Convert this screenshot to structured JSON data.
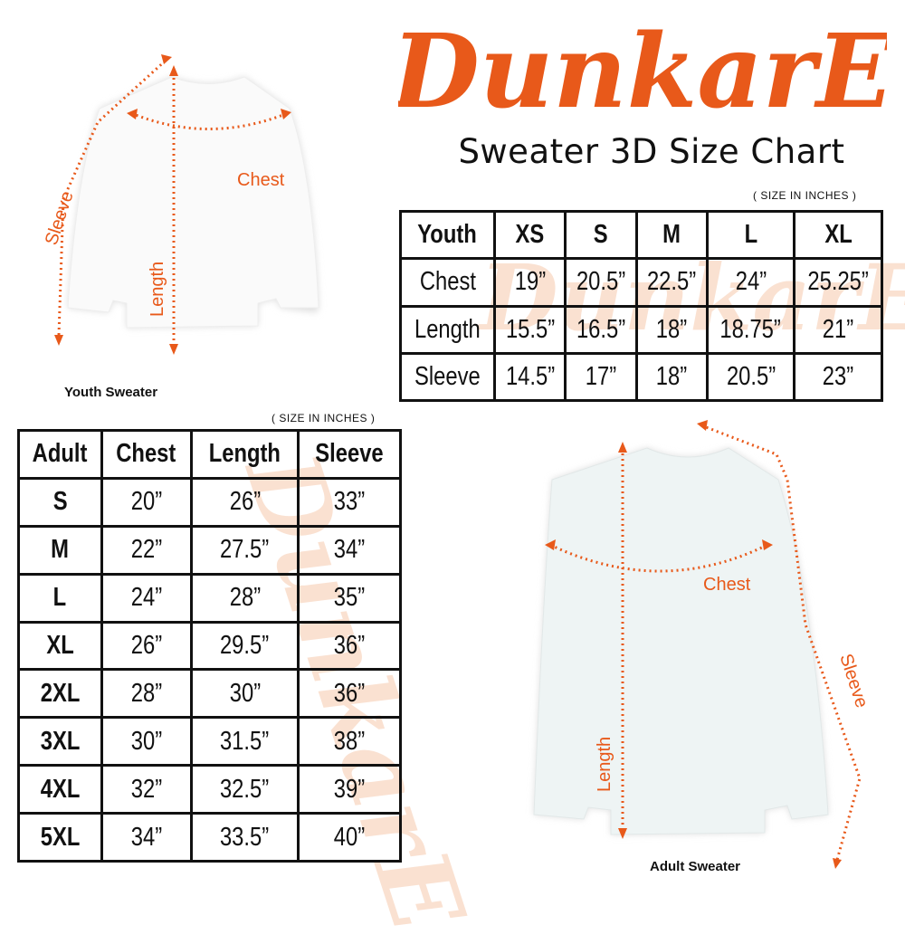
{
  "brand": {
    "logo_text": "DunkarE",
    "color": "#e8591a"
  },
  "title": "Sweater 3D Size Chart",
  "youth": {
    "unit_note": "( SIZE IN INCHES )",
    "caption": "Youth Sweater",
    "labels": {
      "chest": "Chest",
      "length": "Length",
      "sleeve": "Sleeve"
    },
    "header": [
      "Youth",
      "XS",
      "S",
      "M",
      "L",
      "XL"
    ],
    "rows": [
      [
        "Chest",
        "19”",
        "20.5”",
        "22.5”",
        "24”",
        "25.25”"
      ],
      [
        "Length",
        "15.5”",
        "16.5”",
        "18”",
        "18.75”",
        "21”"
      ],
      [
        "Sleeve",
        "14.5”",
        "17”",
        "18”",
        "20.5”",
        "23”"
      ]
    ]
  },
  "adult": {
    "unit_note": "( SIZE IN INCHES )",
    "caption": "Adult Sweater",
    "labels": {
      "chest": "Chest",
      "length": "Length",
      "sleeve": "Sleeve"
    },
    "header": [
      "Adult",
      "Chest",
      "Length",
      "Sleeve"
    ],
    "rows": [
      [
        "S",
        "20”",
        "26”",
        "33”"
      ],
      [
        "M",
        "22”",
        "27.5”",
        "34”"
      ],
      [
        "L",
        "24”",
        "28”",
        "35”"
      ],
      [
        "XL",
        "26”",
        "29.5”",
        "36”"
      ],
      [
        "2XL",
        "28”",
        "30”",
        "36”"
      ],
      [
        "3XL",
        "30”",
        "31.5”",
        "38”"
      ],
      [
        "4XL",
        "32”",
        "32.5”",
        "39”"
      ],
      [
        "5XL",
        "34”",
        "33.5”",
        "40”"
      ]
    ]
  }
}
